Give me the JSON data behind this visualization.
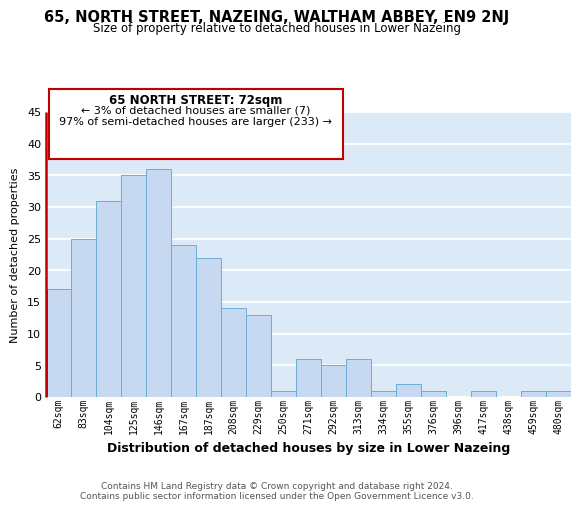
{
  "title": "65, NORTH STREET, NAZEING, WALTHAM ABBEY, EN9 2NJ",
  "subtitle": "Size of property relative to detached houses in Lower Nazeing",
  "xlabel": "Distribution of detached houses by size in Lower Nazeing",
  "ylabel": "Number of detached properties",
  "bin_labels": [
    "62sqm",
    "83sqm",
    "104sqm",
    "125sqm",
    "146sqm",
    "167sqm",
    "187sqm",
    "208sqm",
    "229sqm",
    "250sqm",
    "271sqm",
    "292sqm",
    "313sqm",
    "334sqm",
    "355sqm",
    "376sqm",
    "396sqm",
    "417sqm",
    "438sqm",
    "459sqm",
    "480sqm"
  ],
  "bar_values": [
    17,
    25,
    31,
    35,
    36,
    24,
    22,
    14,
    13,
    1,
    6,
    5,
    6,
    1,
    2,
    1,
    0,
    1,
    0,
    1,
    1
  ],
  "bar_color": "#c6d9f0",
  "highlight_bar_index": 0,
  "highlight_edge_color": "#c00000",
  "normal_edge_color": "#6baed6",
  "ylim": [
    0,
    45
  ],
  "yticks": [
    0,
    5,
    10,
    15,
    20,
    25,
    30,
    35,
    40,
    45
  ],
  "annotation_title": "65 NORTH STREET: 72sqm",
  "annotation_line1": "← 3% of detached houses are smaller (7)",
  "annotation_line2": "97% of semi-detached houses are larger (233) →",
  "annotation_box_color": "#ffffff",
  "annotation_box_edge": "#c00000",
  "footer_line1": "Contains HM Land Registry data © Crown copyright and database right 2024.",
  "footer_line2": "Contains public sector information licensed under the Open Government Licence v3.0.",
  "plot_bg_color": "#dce9f7",
  "fig_bg_color": "#ffffff",
  "grid_color": "#ffffff"
}
